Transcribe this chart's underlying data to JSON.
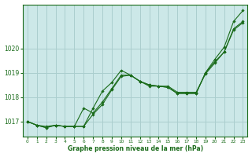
{
  "title": "Graphe pression niveau de la mer (hPa)",
  "background_color": "#cce8e8",
  "grid_color": "#aacece",
  "line_color": "#1a6b1a",
  "text_color": "#1a6b1a",
  "fig_bg": "#ffffff",
  "xlim": [
    -0.5,
    23.5
  ],
  "ylim": [
    1016.4,
    1021.8
  ],
  "yticks": [
    1017,
    1018,
    1019,
    1020
  ],
  "xticks": [
    0,
    1,
    2,
    3,
    4,
    5,
    6,
    7,
    8,
    9,
    10,
    11,
    12,
    13,
    14,
    15,
    16,
    17,
    18,
    19,
    20,
    21,
    22,
    23
  ],
  "series": [
    {
      "x": [
        0,
        1,
        2,
        3,
        4,
        5,
        6,
        7,
        8,
        9,
        10,
        11,
        12,
        13,
        14,
        15,
        16,
        17,
        18,
        19,
        20,
        21,
        22,
        23
      ],
      "y": [
        1017.0,
        1016.85,
        1016.8,
        1016.85,
        1016.8,
        1016.8,
        1016.8,
        1017.55,
        1018.25,
        1018.6,
        1019.1,
        1018.9,
        1018.65,
        1018.5,
        1018.45,
        1018.4,
        1018.15,
        1018.15,
        1018.15,
        1019.0,
        1019.55,
        1020.05,
        1021.1,
        1021.55
      ]
    },
    {
      "x": [
        0,
        1,
        2,
        3,
        4,
        5,
        6,
        7,
        8,
        9,
        10,
        11,
        12,
        13,
        14,
        15,
        16,
        17,
        18,
        19,
        20,
        21,
        22,
        23
      ],
      "y": [
        1017.0,
        1016.85,
        1016.75,
        1016.85,
        1016.8,
        1016.8,
        1017.55,
        1017.35,
        1017.8,
        1018.35,
        1018.9,
        1018.9,
        1018.65,
        1018.5,
        1018.45,
        1018.4,
        1018.15,
        1018.15,
        1018.15,
        1019.0,
        1019.45,
        1019.85,
        1020.8,
        1021.1
      ]
    },
    {
      "x": [
        0,
        1,
        2,
        3,
        4,
        5,
        6,
        7,
        8,
        9,
        10,
        11,
        12,
        13,
        14,
        15,
        16,
        17,
        18,
        19,
        20,
        21,
        22,
        23
      ],
      "y": [
        1017.0,
        1016.85,
        1016.75,
        1016.85,
        1016.8,
        1016.8,
        1016.8,
        1017.3,
        1017.7,
        1018.3,
        1018.85,
        1018.9,
        1018.65,
        1018.45,
        1018.45,
        1018.45,
        1018.2,
        1018.2,
        1018.2,
        1018.95,
        1019.4,
        1019.85,
        1020.75,
        1021.05
      ]
    }
  ]
}
